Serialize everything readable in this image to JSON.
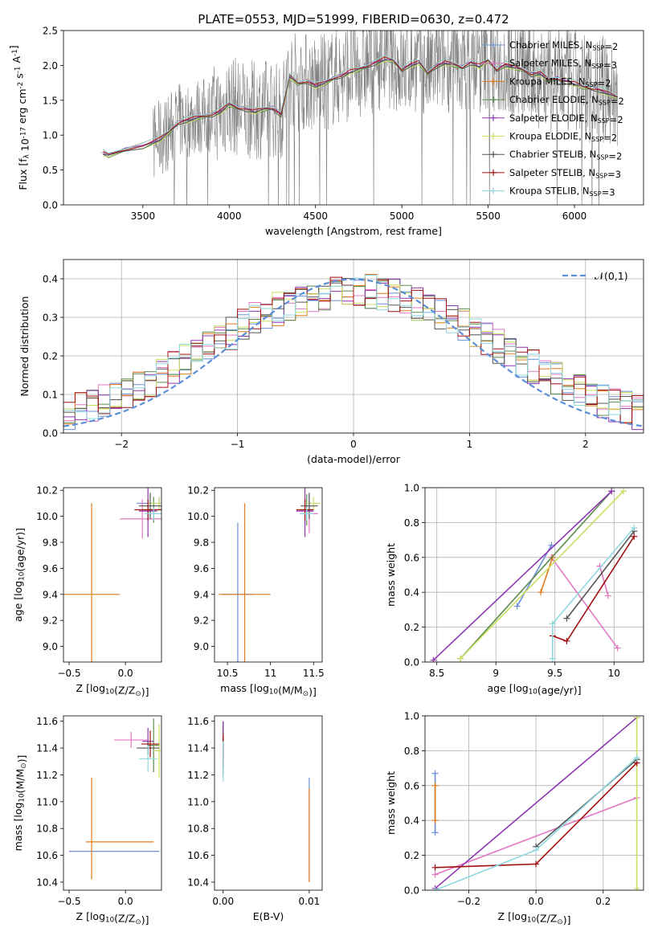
{
  "title": "PLATE=0553, MJD=51999, FIBERID=0630, z=0.472",
  "legend_models": [
    {
      "name": "Chabrier MILES, N$_{SSP}$=2",
      "color": "#6a8fd8"
    },
    {
      "name": "Salpeter MILES, N$_{SSP}$=3",
      "color": "#e377c2"
    },
    {
      "name": "Kroupa MILES, N$_{SSP}$=2",
      "color": "#e07b1a"
    },
    {
      "name": "Chabrier ELODIE, N$_{SSP}$=2",
      "color": "#5c8a4c"
    },
    {
      "name": "Salpeter ELODIE, N$_{SSP}$=2",
      "color": "#8e35b0"
    },
    {
      "name": "Kroupa ELODIE, N$_{SSP}$=2",
      "color": "#c8e060"
    },
    {
      "name": "Chabrier STELIB, N$_{SSP}$=2",
      "color": "#555555"
    },
    {
      "name": "Salpeter STELIB, N$_{SSP}$=3",
      "color": "#a01010"
    },
    {
      "name": "Kroupa STELIB, N$_{SSP}$=3",
      "color": "#8fd8e0"
    }
  ],
  "chart_data": [
    {
      "id": "spectrum",
      "type": "line",
      "xlabel": "wavelength [Angstrom, rest frame]",
      "ylabel": "Flux [f$_\\lambda$ 10$^{-17}$ erg cm$^{-2}$ s$^{-1}$ A$^{-1}$]",
      "xlim": [
        3040,
        6400
      ],
      "ylim": [
        0,
        2.5
      ],
      "xticks": [
        3500,
        4000,
        4500,
        5000,
        5500,
        6000
      ],
      "yticks": [
        0.0,
        0.5,
        1.0,
        1.5,
        2.0,
        2.5
      ],
      "data_color": "#808080",
      "model_x": [
        3270,
        3300,
        3400,
        3500,
        3600,
        3650,
        3700,
        3750,
        3800,
        3850,
        3900,
        3950,
        4000,
        4050,
        4100,
        4150,
        4200,
        4250,
        4300,
        4350,
        4400,
        4450,
        4500,
        4550,
        4600,
        4650,
        4700,
        4750,
        4800,
        4850,
        4900,
        4950,
        5000,
        5050,
        5100,
        5150,
        5200,
        5250,
        5300,
        5350,
        5400,
        5450,
        5500,
        5550,
        5600,
        5650,
        5700,
        5750,
        5800,
        5850,
        5900,
        5950,
        6000,
        6050,
        6100,
        6150,
        6200,
        6250
      ],
      "model_y": [
        0.75,
        0.72,
        0.8,
        0.85,
        0.95,
        1.05,
        1.18,
        1.22,
        1.25,
        1.28,
        1.3,
        1.35,
        1.45,
        1.4,
        1.38,
        1.35,
        1.38,
        1.4,
        1.3,
        1.85,
        1.75,
        1.78,
        1.72,
        1.75,
        1.82,
        1.86,
        1.92,
        1.95,
        2.0,
        2.05,
        2.1,
        2.08,
        1.95,
        2.02,
        2.05,
        1.9,
        2.0,
        2.05,
        2.02,
        1.98,
        2.05,
        2.0,
        2.08,
        1.95,
        2.02,
        1.98,
        1.95,
        1.88,
        1.9,
        1.8,
        1.82,
        1.78,
        1.75,
        1.7,
        1.68,
        1.65,
        1.6,
        1.55
      ]
    },
    {
      "id": "residuals",
      "type": "step",
      "xlabel": "(data-model)/error",
      "ylabel": "Normed distribution",
      "xlim": [
        -2.5,
        2.5
      ],
      "ylim": [
        0,
        0.45
      ],
      "xticks": [
        -2,
        -1,
        0,
        1,
        2
      ],
      "yticks": [
        0.0,
        0.1,
        0.2,
        0.3,
        0.4
      ],
      "legend": "$\\mathcal{N}(0,1)$",
      "normal_color": "#5b8fd8"
    },
    {
      "id": "age_Z",
      "type": "scatter",
      "xlabel": "Z [log$_{10}$(Z/Z$_\\odot$)]",
      "ylabel": "age  [log$_{10}$(age/yr)]",
      "xlim": [
        -0.55,
        0.32
      ],
      "ylim": [
        8.88,
        10.22
      ],
      "xticks": [
        -0.5,
        0.0
      ],
      "xticklabels": [
        "−0.5",
        "0.0"
      ],
      "yticks": [
        9.0,
        9.2,
        9.4,
        9.6,
        9.8,
        10.0,
        10.2
      ]
    },
    {
      "id": "age_mass",
      "type": "scatter",
      "xlabel": "mass [log$_{10}$(M/M$_\\odot$)]",
      "xlim": [
        10.35,
        11.6
      ],
      "ylim": [
        8.88,
        10.22
      ],
      "xticks": [
        10.5,
        11.0,
        11.5
      ],
      "yticks": [
        9.0,
        9.2,
        9.4,
        9.6,
        9.8,
        10.0,
        10.2
      ]
    },
    {
      "id": "weight_age",
      "type": "line",
      "xlabel": "age  [log$_{10}$(age/yr)]",
      "ylabel": "mass weight",
      "xlim": [
        8.4,
        10.25
      ],
      "ylim": [
        0,
        1
      ],
      "xticks": [
        8.5,
        9.0,
        9.5,
        10.0
      ],
      "yticks": [
        0.0,
        0.2,
        0.4,
        0.6,
        0.8,
        1.0
      ]
    },
    {
      "id": "mass_Z",
      "type": "scatter",
      "xlabel": "Z [log$_{10}$(Z/Z$_\\odot$)]",
      "ylabel": "mass [log$_{10}$(M/M$_\\odot$)]",
      "xlim": [
        -0.55,
        0.32
      ],
      "ylim": [
        10.34,
        11.64
      ],
      "xticks": [
        -0.5,
        0.0
      ],
      "xticklabels": [
        "−0.5",
        "0.0"
      ],
      "yticks": [
        10.4,
        10.6,
        10.8,
        11.0,
        11.2,
        11.4,
        11.6
      ]
    },
    {
      "id": "mass_ebv",
      "type": "scatter",
      "xlabel": "E(B-V)",
      "xlim": [
        -0.001,
        0.0115
      ],
      "ylim": [
        10.34,
        11.64
      ],
      "xticks": [
        0.0,
        0.01
      ],
      "xticklabels": [
        "0.00",
        "0.01"
      ],
      "yticks": [
        10.4,
        10.6,
        10.8,
        11.0,
        11.2,
        11.4,
        11.6
      ]
    },
    {
      "id": "weight_Z",
      "type": "line",
      "xlabel": "Z [log$_{10}$(Z/Z$_\\odot$)]",
      "ylabel": "mass weight",
      "xlim": [
        -0.33,
        0.32
      ],
      "ylim": [
        0,
        1
      ],
      "xticks": [
        -0.2,
        0.0,
        0.2
      ],
      "xticklabels": [
        "−0.2",
        "0.0",
        "0.2"
      ],
      "yticks": [
        0.0,
        0.2,
        0.4,
        0.6,
        0.8,
        1.0
      ]
    }
  ],
  "series_points": {
    "age_Z": [
      {
        "c": 0,
        "x": 0.3,
        "y": 10.1,
        "xe": 0.2,
        "ye": 0.05
      },
      {
        "c": 1,
        "x": 0.15,
        "y": 9.98,
        "xe": 0.2,
        "ye": 0.15
      },
      {
        "c": 2,
        "x": -0.3,
        "y": 9.4,
        "xe": 0.25,
        "ye": 0.7
      },
      {
        "c": 3,
        "x": 0.25,
        "y": 10.05,
        "xe": 0.1,
        "ye": 0.1
      },
      {
        "c": 4,
        "x": 0.2,
        "y": 10.04,
        "xe": 0.08,
        "ye": 0.2
      },
      {
        "c": 5,
        "x": 0.3,
        "y": 10.1,
        "xe": 0.1,
        "ye": 0.05
      },
      {
        "c": 6,
        "x": 0.22,
        "y": 10.08,
        "xe": 0.1,
        "ye": 0.1
      },
      {
        "c": 7,
        "x": 0.2,
        "y": 10.05,
        "xe": 0.12,
        "ye": 0.08
      },
      {
        "c": 8,
        "x": 0.25,
        "y": 10.02,
        "xe": 0.08,
        "ye": 0.05
      }
    ],
    "age_mass": [
      {
        "c": 0,
        "x": 10.62,
        "y": 9.4,
        "xe": 0.18,
        "ye": 0.55
      },
      {
        "c": 2,
        "x": 10.7,
        "y": 9.4,
        "xe": 0.3,
        "ye": 0.7
      },
      {
        "c": 1,
        "x": 11.45,
        "y": 10.02,
        "xe": 0.1,
        "ye": 0.15
      },
      {
        "c": 3,
        "x": 11.42,
        "y": 10.05,
        "xe": 0.08,
        "ye": 0.12
      },
      {
        "c": 4,
        "x": 11.4,
        "y": 10.04,
        "xe": 0.1,
        "ye": 0.2
      },
      {
        "c": 5,
        "x": 11.5,
        "y": 10.1,
        "xe": 0.08,
        "ye": 0.05
      },
      {
        "c": 6,
        "x": 11.45,
        "y": 10.08,
        "xe": 0.1,
        "ye": 0.1
      },
      {
        "c": 7,
        "x": 11.4,
        "y": 10.05,
        "xe": 0.1,
        "ye": 0.08
      },
      {
        "c": 8,
        "x": 11.42,
        "y": 10.02,
        "xe": 0.08,
        "ye": 0.05
      }
    ],
    "mass_Z": [
      {
        "c": 0,
        "x": -0.1,
        "y": 10.63,
        "xe": 0.4,
        "ye": 0.0
      },
      {
        "c": 2,
        "x": -0.05,
        "y": 10.7,
        "xe": 0.3,
        "ye": 0.0
      },
      {
        "c": 2,
        "x": -0.3,
        "y": 10.8,
        "xe": 0.0,
        "ye": 0.38
      },
      {
        "c": 1,
        "x": 0.05,
        "y": 11.46,
        "xe": 0.15,
        "ye": 0.06
      },
      {
        "c": 3,
        "x": 0.25,
        "y": 11.42,
        "xe": 0.05,
        "ye": 0.2
      },
      {
        "c": 4,
        "x": 0.2,
        "y": 11.45,
        "xe": 0.05,
        "ye": 0.1
      },
      {
        "c": 5,
        "x": 0.3,
        "y": 11.38,
        "xe": 0.05,
        "ye": 0.2
      },
      {
        "c": 6,
        "x": 0.2,
        "y": 11.4,
        "xe": 0.1,
        "ye": 0.05
      },
      {
        "c": 7,
        "x": 0.22,
        "y": 11.43,
        "xe": 0.08,
        "ye": 0.1
      },
      {
        "c": 8,
        "x": 0.2,
        "y": 11.32,
        "xe": 0.08,
        "ye": 0.1
      }
    ],
    "mass_ebv": [
      {
        "c": 1,
        "x": 0.0,
        "y": 11.45,
        "xe": 0,
        "ye": 0.12
      },
      {
        "c": 3,
        "x": 0.0,
        "y": 11.4,
        "xe": 0,
        "ye": 0.2
      },
      {
        "c": 4,
        "x": 0.0,
        "y": 11.5,
        "xe": 0,
        "ye": 0.1
      },
      {
        "c": 6,
        "x": 0.0,
        "y": 11.42,
        "xe": 0,
        "ye": 0.1
      },
      {
        "c": 7,
        "x": 0.0,
        "y": 11.38,
        "xe": 0,
        "ye": 0.12
      },
      {
        "c": 8,
        "x": 0.0,
        "y": 11.3,
        "xe": 0,
        "ye": 0.15
      },
      {
        "c": 0,
        "x": 0.01,
        "y": 10.8,
        "xe": 0,
        "ye": 0.38
      },
      {
        "c": 2,
        "x": 0.01,
        "y": 10.75,
        "xe": 0,
        "ye": 0.35
      }
    ],
    "weight_age": [
      {
        "c": 0,
        "pts": [
          [
            9.18,
            0.32
          ],
          [
            9.47,
            0.67
          ]
        ]
      },
      {
        "c": 1,
        "pts": [
          [
            9.47,
            0.6
          ],
          [
            10.03,
            0.08
          ]
        ]
      },
      {
        "c": 1,
        "pts": [
          [
            9.95,
            0.38
          ],
          [
            9.88,
            0.55
          ]
        ]
      },
      {
        "c": 2,
        "pts": [
          [
            9.38,
            0.4
          ],
          [
            9.48,
            0.6
          ]
        ]
      },
      {
        "c": 3,
        "pts": [
          [
            8.7,
            0.02
          ],
          [
            9.98,
            0.98
          ]
        ]
      },
      {
        "c": 4,
        "pts": [
          [
            8.47,
            0.01
          ],
          [
            9.98,
            0.98
          ]
        ]
      },
      {
        "c": 5,
        "pts": [
          [
            8.7,
            0.02
          ],
          [
            10.08,
            0.98
          ]
        ]
      },
      {
        "c": 6,
        "pts": [
          [
            9.6,
            0.25
          ],
          [
            10.17,
            0.75
          ]
        ]
      },
      {
        "c": 7,
        "pts": [
          [
            9.48,
            0.15
          ],
          [
            9.6,
            0.12
          ],
          [
            10.17,
            0.72
          ]
        ]
      },
      {
        "c": 8,
        "pts": [
          [
            9.48,
            0.02
          ],
          [
            9.48,
            0.22
          ],
          [
            10.17,
            0.77
          ]
        ]
      }
    ],
    "weight_Z": [
      {
        "c": 0,
        "pts": [
          [
            -0.3,
            0.33
          ],
          [
            -0.3,
            0.67
          ]
        ]
      },
      {
        "c": 2,
        "pts": [
          [
            -0.3,
            0.4
          ],
          [
            -0.3,
            0.6
          ]
        ]
      },
      {
        "c": 1,
        "pts": [
          [
            -0.3,
            0.09
          ],
          [
            0.3,
            0.53
          ]
        ]
      },
      {
        "c": 4,
        "pts": [
          [
            -0.3,
            0.01
          ],
          [
            0.3,
            0.99
          ]
        ]
      },
      {
        "c": 5,
        "pts": [
          [
            0.3,
            0.01
          ],
          [
            0.3,
            0.99
          ]
        ]
      },
      {
        "c": 6,
        "pts": [
          [
            0.0,
            0.25
          ],
          [
            0.3,
            0.75
          ]
        ]
      },
      {
        "c": 7,
        "pts": [
          [
            -0.3,
            0.13
          ],
          [
            0.0,
            0.15
          ],
          [
            0.3,
            0.73
          ]
        ]
      },
      {
        "c": 8,
        "pts": [
          [
            -0.3,
            0.0
          ],
          [
            0.0,
            0.23
          ],
          [
            0.3,
            0.76
          ]
        ]
      }
    ]
  }
}
